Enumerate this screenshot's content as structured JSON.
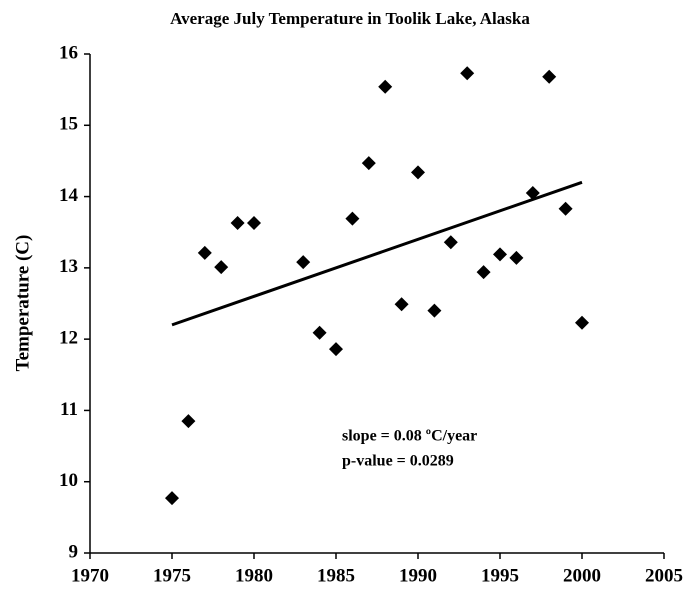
{
  "chart_data": {
    "type": "scatter",
    "title": "Average July Temperature in Toolik Lake, Alaska",
    "y_label": "Temperature (C)",
    "annotations": [
      "slope = 0.08 ºC/year",
      "p-value = 0.0289"
    ],
    "x": [
      1975,
      1976,
      1977,
      1978,
      1979,
      1980,
      1983,
      1984,
      1985,
      1986,
      1987,
      1988,
      1989,
      1990,
      1991,
      1992,
      1993,
      1994,
      1995,
      1996,
      1997,
      1998,
      1999,
      2000
    ],
    "values": [
      9.77,
      10.85,
      13.21,
      13.01,
      13.63,
      13.63,
      13.08,
      12.09,
      11.86,
      13.69,
      14.47,
      15.54,
      12.49,
      14.34,
      12.4,
      13.36,
      15.73,
      12.94,
      13.19,
      13.14,
      14.05,
      15.68,
      13.83,
      12.23
    ],
    "color": "#000000",
    "trend_line": {
      "x": [
        1975,
        2000
      ],
      "values": [
        12.2,
        14.2
      ],
      "color": "#000000"
    },
    "xlim": [
      1970,
      2005
    ],
    "xticks": [
      1970,
      1975,
      1980,
      1985,
      1990,
      1995,
      2000,
      2005
    ],
    "ylim": [
      9,
      16
    ],
    "yticks": [
      9,
      10,
      11,
      12,
      13,
      14,
      15,
      16
    ],
    "grid": false
  }
}
